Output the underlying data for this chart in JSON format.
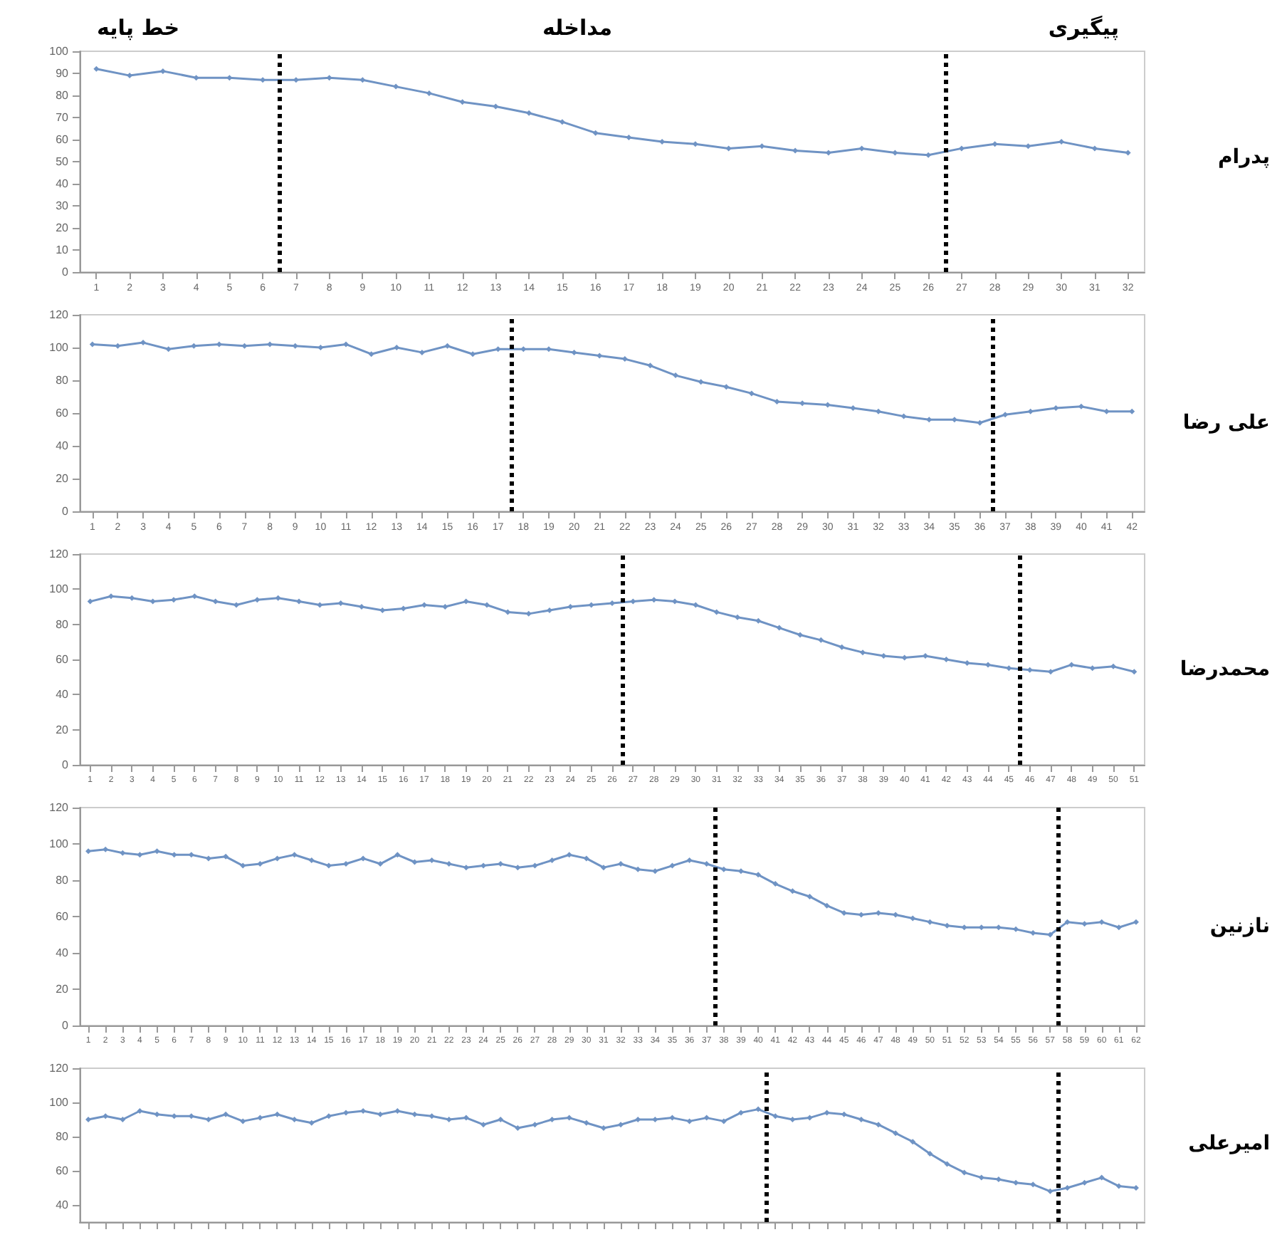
{
  "chart_data": [
    {
      "type": "line",
      "annotations": [
        "خط پایه",
        "مداخله",
        "پیگیری"
      ],
      "ylabel": "پدرام",
      "x": [
        1,
        2,
        3,
        4,
        5,
        6,
        7,
        8,
        9,
        10,
        11,
        12,
        13,
        14,
        15,
        16,
        17,
        18,
        19,
        20,
        21,
        22,
        23,
        24,
        25,
        26,
        27,
        28,
        29,
        30,
        31,
        32
      ],
      "xlim": [
        0.5,
        32.5
      ],
      "xticks": [
        1,
        2,
        3,
        4,
        5,
        6,
        7,
        8,
        9,
        10,
        11,
        12,
        13,
        14,
        15,
        16,
        17,
        18,
        19,
        20,
        21,
        22,
        23,
        24,
        25,
        26,
        27,
        28,
        29,
        30,
        31,
        32
      ],
      "ylim": [
        0,
        100
      ],
      "yticks": [
        0,
        10,
        20,
        30,
        40,
        50,
        60,
        70,
        80,
        90,
        100
      ],
      "series": [
        {
          "color": "#6f93c4",
          "values": [
            92,
            89,
            91,
            88,
            88,
            87,
            87,
            88,
            87,
            84,
            81,
            77,
            75,
            72,
            68,
            63,
            61,
            59,
            58,
            56,
            57,
            55,
            54,
            56,
            54,
            53,
            56,
            58,
            57,
            59,
            56,
            54
          ]
        }
      ],
      "ref_lines": [
        {
          "axis": "x",
          "value": 6.5,
          "color": "#000000",
          "line_style": "dotted"
        },
        {
          "axis": "x",
          "value": 26.5,
          "color": "#000000",
          "line_style": "dotted"
        }
      ],
      "marker": "diamond",
      "grid": false
    },
    {
      "type": "line",
      "ylabel": "علی رضا",
      "x": [
        1,
        2,
        3,
        4,
        5,
        6,
        7,
        8,
        9,
        10,
        11,
        12,
        13,
        14,
        15,
        16,
        17,
        18,
        19,
        20,
        21,
        22,
        23,
        24,
        25,
        26,
        27,
        28,
        29,
        30,
        31,
        32,
        33,
        34,
        35,
        36,
        37,
        38,
        39,
        40,
        41,
        42
      ],
      "xlim": [
        0.5,
        42.5
      ],
      "xticks": [
        1,
        2,
        3,
        4,
        5,
        6,
        7,
        8,
        9,
        10,
        11,
        12,
        13,
        14,
        15,
        16,
        17,
        18,
        19,
        20,
        21,
        22,
        23,
        24,
        25,
        26,
        27,
        28,
        29,
        30,
        31,
        32,
        33,
        34,
        35,
        36,
        37,
        38,
        39,
        40,
        41,
        42
      ],
      "ylim": [
        0,
        120
      ],
      "yticks": [
        0,
        20,
        40,
        60,
        80,
        100,
        120
      ],
      "series": [
        {
          "color": "#6f93c4",
          "values": [
            102,
            101,
            103,
            99,
            101,
            102,
            101,
            102,
            101,
            100,
            102,
            96,
            100,
            97,
            101,
            96,
            99,
            99,
            99,
            97,
            95,
            93,
            89,
            83,
            79,
            76,
            72,
            67,
            66,
            65,
            63,
            61,
            58,
            56,
            56,
            54,
            59,
            61,
            63,
            64,
            61,
            61
          ]
        }
      ],
      "ref_lines": [
        {
          "axis": "x",
          "value": 17.5,
          "color": "#000000",
          "line_style": "dotted"
        },
        {
          "axis": "x",
          "value": 36.5,
          "color": "#000000",
          "line_style": "dotted"
        }
      ],
      "marker": "diamond",
      "grid": false
    },
    {
      "type": "line",
      "ylabel": "محمدرضا",
      "x": [
        1,
        2,
        3,
        4,
        5,
        6,
        7,
        8,
        9,
        10,
        11,
        12,
        13,
        14,
        15,
        16,
        17,
        18,
        19,
        20,
        21,
        22,
        23,
        24,
        25,
        26,
        27,
        28,
        29,
        30,
        31,
        32,
        33,
        34,
        35,
        36,
        37,
        38,
        39,
        40,
        41,
        42,
        43,
        44,
        45,
        46,
        47,
        48,
        49,
        50,
        51
      ],
      "xlim": [
        0.5,
        51.5
      ],
      "xticks": [
        1,
        2,
        3,
        4,
        5,
        6,
        7,
        8,
        9,
        10,
        11,
        12,
        13,
        14,
        15,
        16,
        17,
        18,
        19,
        20,
        21,
        22,
        23,
        24,
        25,
        26,
        27,
        28,
        29,
        30,
        31,
        32,
        33,
        34,
        35,
        36,
        37,
        38,
        39,
        40,
        41,
        42,
        43,
        44,
        45,
        46,
        47,
        48,
        49,
        50,
        51
      ],
      "ylim": [
        0,
        120
      ],
      "yticks": [
        0,
        20,
        40,
        60,
        80,
        100,
        120
      ],
      "series": [
        {
          "color": "#6f93c4",
          "values": [
            93,
            96,
            95,
            93,
            94,
            96,
            93,
            91,
            94,
            95,
            93,
            91,
            92,
            90,
            88,
            89,
            91,
            90,
            93,
            91,
            87,
            86,
            88,
            90,
            91,
            92,
            93,
            94,
            93,
            91,
            87,
            84,
            82,
            78,
            74,
            71,
            67,
            64,
            62,
            61,
            62,
            60,
            58,
            57,
            55,
            54,
            53,
            57,
            55,
            56,
            53
          ]
        }
      ],
      "ref_lines": [
        {
          "axis": "x",
          "value": 26.5,
          "color": "#000000",
          "line_style": "dotted"
        },
        {
          "axis": "x",
          "value": 45.5,
          "color": "#000000",
          "line_style": "dotted"
        }
      ],
      "marker": "diamond",
      "grid": false
    },
    {
      "type": "line",
      "ylabel": "نازنین",
      "x": [
        1,
        2,
        3,
        4,
        5,
        6,
        7,
        8,
        9,
        10,
        11,
        12,
        13,
        14,
        15,
        16,
        17,
        18,
        19,
        20,
        21,
        22,
        23,
        24,
        25,
        26,
        27,
        28,
        29,
        30,
        31,
        32,
        33,
        34,
        35,
        36,
        37,
        38,
        39,
        40,
        41,
        42,
        43,
        44,
        45,
        46,
        47,
        48,
        49,
        50,
        51,
        52,
        53,
        54,
        55,
        56,
        57,
        58,
        59,
        60,
        61,
        62
      ],
      "xlim": [
        0.5,
        62.5
      ],
      "xticks": [
        1,
        2,
        3,
        4,
        5,
        6,
        7,
        8,
        9,
        10,
        11,
        12,
        13,
        14,
        15,
        16,
        17,
        18,
        19,
        20,
        21,
        22,
        23,
        24,
        25,
        26,
        27,
        28,
        29,
        30,
        31,
        32,
        33,
        34,
        35,
        36,
        37,
        38,
        39,
        40,
        41,
        42,
        43,
        44,
        45,
        46,
        47,
        48,
        49,
        50,
        51,
        52,
        53,
        54,
        55,
        56,
        57,
        58,
        59,
        60,
        61,
        62
      ],
      "ylim": [
        0,
        120
      ],
      "yticks": [
        0,
        20,
        40,
        60,
        80,
        100,
        120
      ],
      "series": [
        {
          "color": "#6f93c4",
          "values": [
            96,
            97,
            95,
            94,
            96,
            94,
            94,
            92,
            93,
            88,
            89,
            92,
            94,
            91,
            88,
            89,
            92,
            89,
            94,
            90,
            91,
            89,
            87,
            88,
            89,
            87,
            88,
            91,
            94,
            92,
            87,
            89,
            86,
            85,
            88,
            91,
            89,
            86,
            85,
            83,
            78,
            74,
            71,
            66,
            62,
            61,
            62,
            61,
            59,
            57,
            55,
            54,
            54,
            54,
            53,
            51,
            50,
            57,
            56,
            57,
            54,
            57
          ]
        }
      ],
      "ref_lines": [
        {
          "axis": "x",
          "value": 37.5,
          "color": "#000000",
          "line_style": "dotted"
        },
        {
          "axis": "x",
          "value": 57.5,
          "color": "#000000",
          "line_style": "dotted"
        }
      ],
      "marker": "diamond",
      "grid": false
    },
    {
      "type": "line",
      "ylabel": "امیرعلی",
      "x": [
        1,
        2,
        3,
        4,
        5,
        6,
        7,
        8,
        9,
        10,
        11,
        12,
        13,
        14,
        15,
        16,
        17,
        18,
        19,
        20,
        21,
        22,
        23,
        24,
        25,
        26,
        27,
        28,
        29,
        30,
        31,
        32,
        33,
        34,
        35,
        36,
        37,
        38,
        39,
        40,
        41,
        42,
        43,
        44,
        45,
        46,
        47,
        48,
        49,
        50,
        51,
        52,
        53,
        54,
        55,
        56,
        57,
        58,
        59,
        60,
        61,
        62
      ],
      "xlim": [
        0.5,
        62.5
      ],
      "xticks": [
        1,
        2,
        3,
        4,
        5,
        6,
        7,
        8,
        9,
        10,
        11,
        12,
        13,
        14,
        15,
        16,
        17,
        18,
        19,
        20,
        21,
        22,
        23,
        24,
        25,
        26,
        27,
        28,
        29,
        30,
        31,
        32,
        33,
        34,
        35,
        36,
        37,
        38,
        39,
        40,
        41,
        42,
        43,
        44,
        45,
        46,
        47,
        48,
        49,
        50,
        51,
        52,
        53,
        54,
        55,
        56,
        57,
        58,
        59,
        60,
        61,
        62
      ],
      "ylim": [
        30,
        120
      ],
      "yticks": [
        40,
        60,
        80,
        100,
        120
      ],
      "tick_labels": "y",
      "series": [
        {
          "color": "#6f93c4",
          "values": [
            90,
            92,
            90,
            95,
            93,
            92,
            92,
            90,
            93,
            89,
            91,
            93,
            90,
            88,
            92,
            94,
            95,
            93,
            95,
            93,
            92,
            90,
            91,
            87,
            90,
            85,
            87,
            90,
            91,
            88,
            85,
            87,
            90,
            90,
            91,
            89,
            91,
            89,
            94,
            96,
            92,
            90,
            91,
            94,
            93,
            90,
            87,
            82,
            77,
            70,
            64,
            59,
            56,
            55,
            53,
            52,
            48,
            50,
            53,
            56,
            51,
            50
          ]
        }
      ],
      "ref_lines": [
        {
          "axis": "x",
          "value": 40.5,
          "color": "#000000",
          "line_style": "dotted"
        },
        {
          "axis": "x",
          "value": 57.5,
          "color": "#000000",
          "line_style": "dotted"
        }
      ],
      "marker": "diamond",
      "grid": false
    }
  ]
}
